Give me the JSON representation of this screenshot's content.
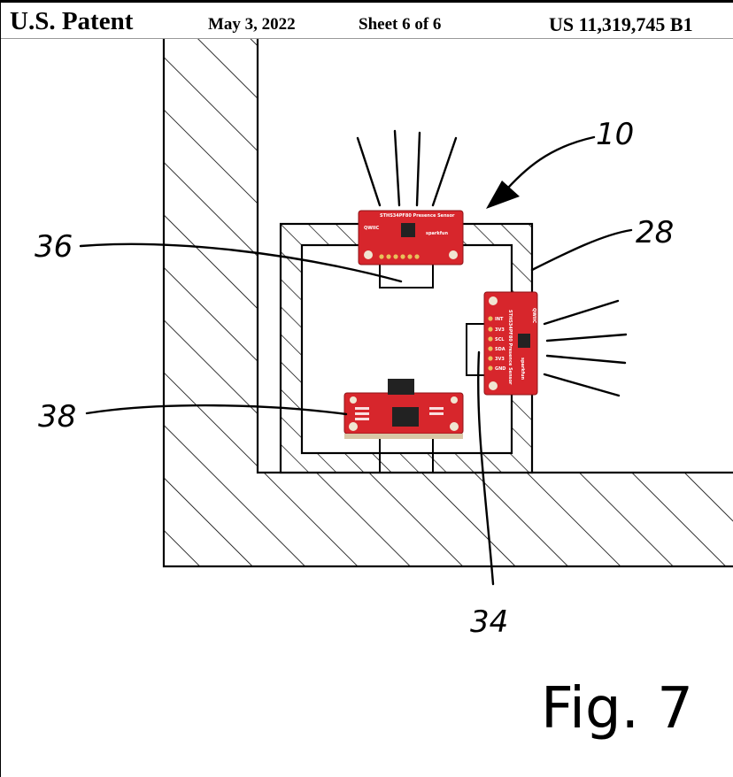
{
  "header": {
    "patent_label": "U.S. Patent",
    "date": "May 3, 2022",
    "sheet": "Sheet 6 of 6",
    "patent_number": "US 11,319,745 B1"
  },
  "figure": {
    "label": "Fig. 7",
    "reference_numerals": {
      "device": "10",
      "housing": "28",
      "lower_sensor": "34",
      "top_sensor": "36",
      "controller": "38"
    }
  },
  "boards": {
    "top_sensor": {
      "title": "STHS34PF80 Presence Sensor",
      "logo": "QWIIC",
      "brand": "sparkfun"
    },
    "side_sensor": {
      "title": "STHS34PF80 Presence Sensor",
      "logo": "QWIIC",
      "brand": "sparkfun",
      "pins": [
        "INT",
        "3V3",
        "SCL",
        "SDA",
        "3V3",
        "GND"
      ]
    }
  },
  "colors": {
    "pcb_red": "#d7262c",
    "line": "#000000",
    "background": "#ffffff",
    "board_base": "#e8d9bf"
  }
}
